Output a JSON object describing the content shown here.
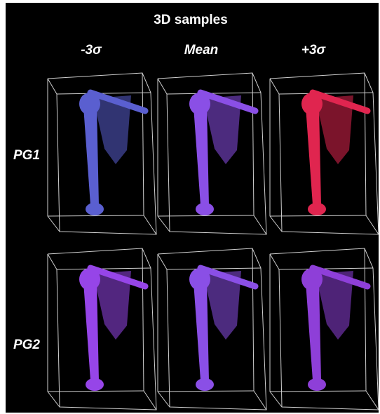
{
  "title": "3D samples",
  "columns": [
    "-3σ",
    "Mean",
    "+3σ"
  ],
  "rows": [
    "PG1",
    "PG2"
  ]
}
